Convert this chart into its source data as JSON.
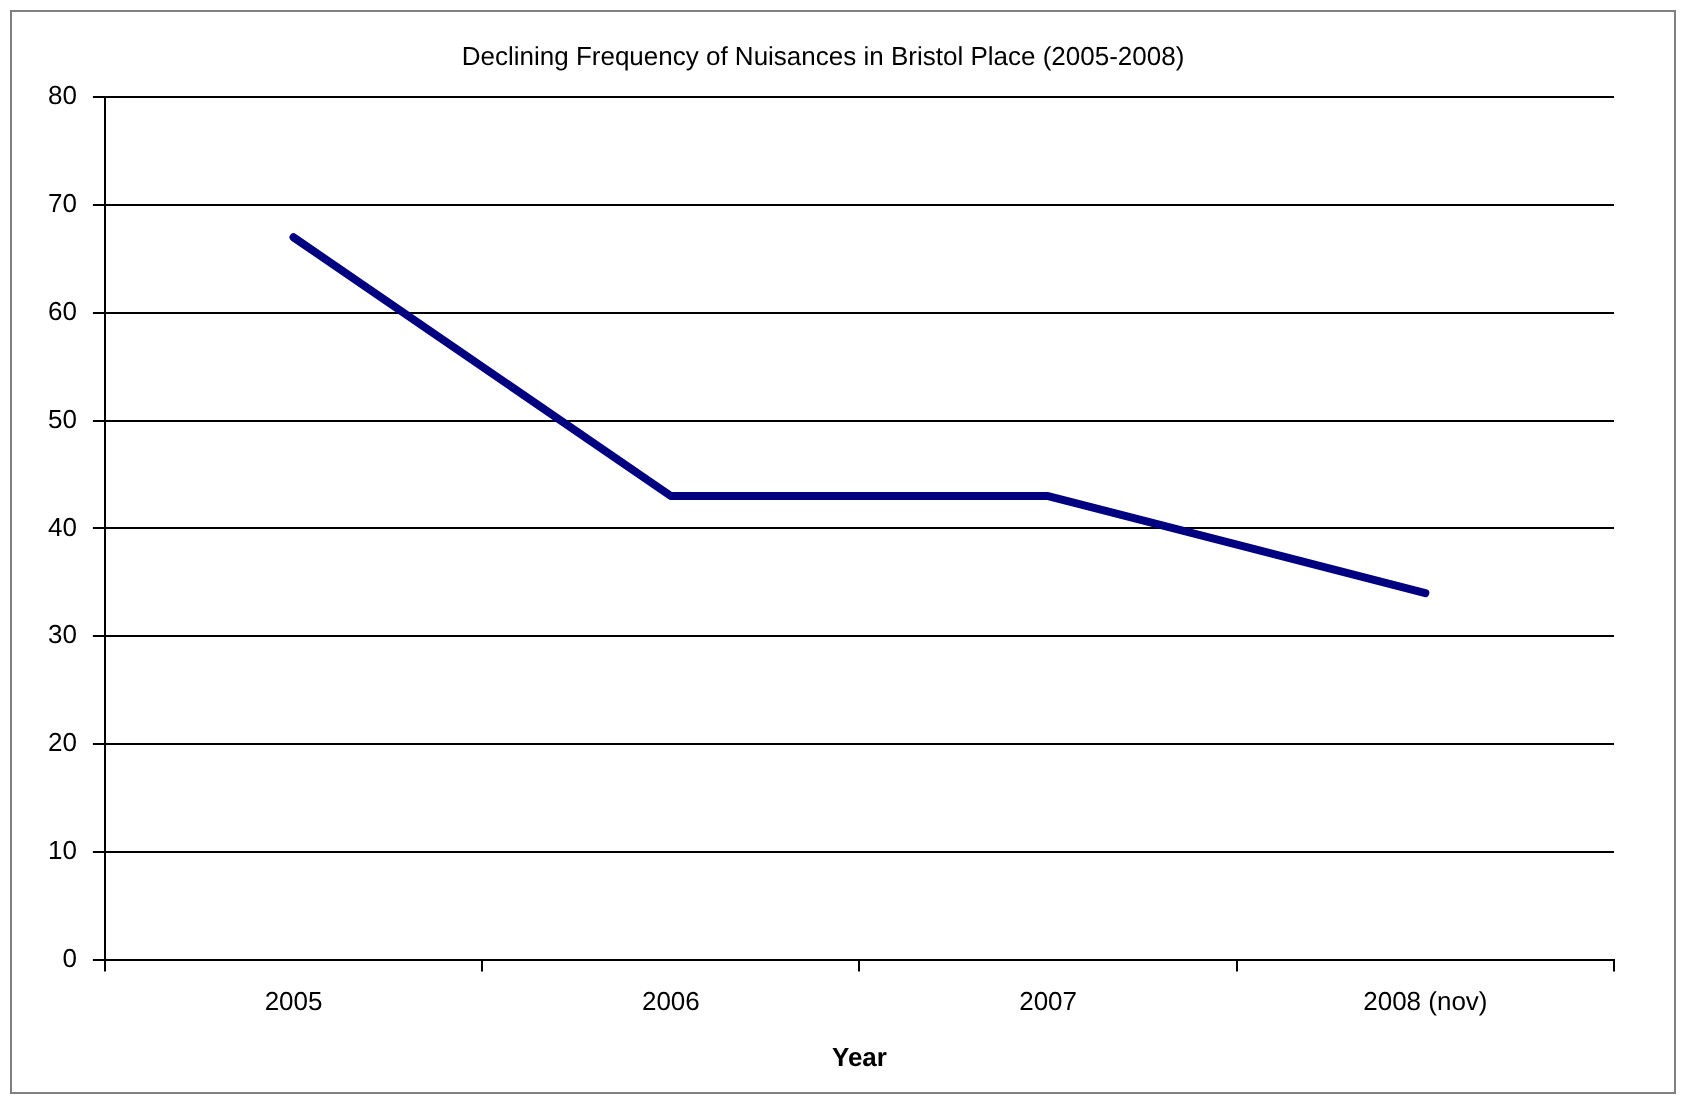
{
  "chart_data": {
    "type": "line",
    "title": "Declining Frequency of Nuisances in Bristol Place (2005-2008)",
    "xlabel": "Year",
    "categories": [
      "2005",
      "2006",
      "2007",
      "2008 (nov)"
    ],
    "series": [
      {
        "color": "#000080",
        "values": [
          67,
          43,
          43,
          34
        ]
      }
    ],
    "ylim": [
      0,
      80
    ],
    "yticks": [
      0,
      10,
      20,
      30,
      40,
      50,
      60,
      70,
      80
    ],
    "grid": "y",
    "marker": "none",
    "line_style": "solid",
    "legend": false
  }
}
